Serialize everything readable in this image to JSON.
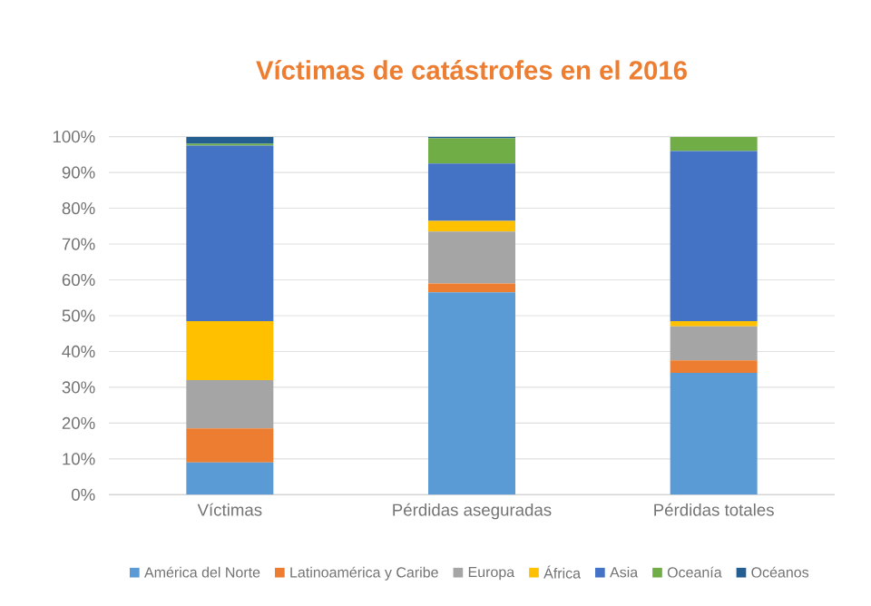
{
  "chart_data": {
    "type": "bar",
    "stacked": true,
    "title": "Víctimas de catástrofes en el 2016",
    "categories": [
      "Víctimas",
      "Pérdidas aseguradas",
      "Pérdidas totales"
    ],
    "series": [
      {
        "name": "América del Norte",
        "color": "#5b9bd5",
        "values": [
          9,
          56.5,
          34
        ]
      },
      {
        "name": "Latinoamérica y Caribe",
        "color": "#ed7d31",
        "values": [
          9.5,
          2.5,
          3.5
        ]
      },
      {
        "name": "Europa",
        "color": "#a5a5a5",
        "values": [
          13.5,
          14.5,
          9.5
        ]
      },
      {
        "name": "África",
        "color": "#ffc000",
        "values": [
          16.5,
          3,
          1.5
        ]
      },
      {
        "name": "Asia",
        "color": "#4472c4",
        "values": [
          49,
          16,
          47.5
        ]
      },
      {
        "name": "Oceanía",
        "color": "#70ad47",
        "values": [
          0.5,
          7,
          4
        ]
      },
      {
        "name": "Océanos",
        "color": "#255e91",
        "values": [
          2,
          0.5,
          0
        ]
      }
    ],
    "ylim": [
      0,
      100
    ],
    "yticks": [
      {
        "value": 0,
        "label": "0%"
      },
      {
        "value": 10,
        "label": "10%"
      },
      {
        "value": 20,
        "label": "20%"
      },
      {
        "value": 30,
        "label": "30%"
      },
      {
        "value": 40,
        "label": "40%"
      },
      {
        "value": 50,
        "label": "50%"
      },
      {
        "value": 60,
        "label": "60%"
      },
      {
        "value": 70,
        "label": "70%"
      },
      {
        "value": 80,
        "label": "80%"
      },
      {
        "value": 90,
        "label": "90%"
      },
      {
        "value": 100,
        "label": "100%"
      }
    ],
    "grid": "y",
    "legend": "bottom"
  }
}
